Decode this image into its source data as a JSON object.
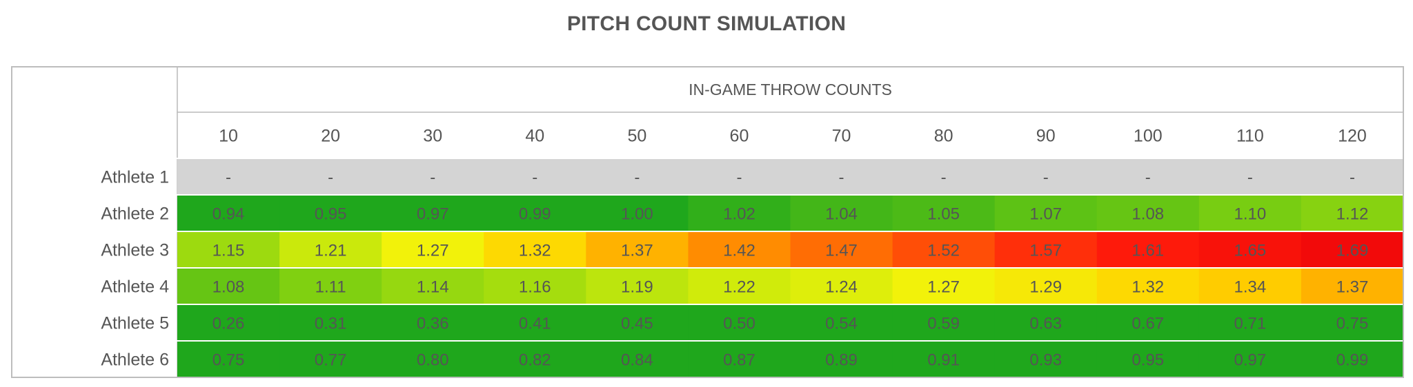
{
  "chart_data": {
    "type": "heatmap",
    "title": "PITCH COUNT SIMULATION",
    "column_group_label": "IN-GAME THROW COUNTS",
    "columns": [
      "10",
      "20",
      "30",
      "40",
      "50",
      "60",
      "70",
      "80",
      "90",
      "100",
      "110",
      "120"
    ],
    "rows": [
      {
        "label": "Athlete 1",
        "values": [
          "-",
          "-",
          "-",
          "-",
          "-",
          "-",
          "-",
          "-",
          "-",
          "-",
          "-",
          "-"
        ]
      },
      {
        "label": "Athlete 2",
        "values": [
          "0.94",
          "0.95",
          "0.97",
          "0.99",
          "1.00",
          "1.02",
          "1.04",
          "1.05",
          "1.07",
          "1.08",
          "1.10",
          "1.12"
        ]
      },
      {
        "label": "Athlete 3",
        "values": [
          "1.15",
          "1.21",
          "1.27",
          "1.32",
          "1.37",
          "1.42",
          "1.47",
          "1.52",
          "1.57",
          "1.61",
          "1.65",
          "1.69"
        ]
      },
      {
        "label": "Athlete 4",
        "values": [
          "1.08",
          "1.11",
          "1.14",
          "1.16",
          "1.19",
          "1.22",
          "1.24",
          "1.27",
          "1.29",
          "1.32",
          "1.34",
          "1.37"
        ]
      },
      {
        "label": "Athlete 5",
        "values": [
          "0.26",
          "0.31",
          "0.36",
          "0.41",
          "0.45",
          "0.50",
          "0.54",
          "0.59",
          "0.63",
          "0.67",
          "0.71",
          "0.75"
        ]
      },
      {
        "label": "Athlete 6",
        "values": [
          "0.75",
          "0.77",
          "0.80",
          "0.82",
          "0.84",
          "0.87",
          "0.89",
          "0.91",
          "0.93",
          "0.95",
          "0.97",
          "0.99"
        ]
      }
    ],
    "color_scale": {
      "stops": [
        {
          "value": 1.0,
          "color": "#1fa71c"
        },
        {
          "value": 1.1,
          "color": "#78cd12"
        },
        {
          "value": 1.2,
          "color": "#c3e80c"
        },
        {
          "value": 1.27,
          "color": "#f2f20a"
        },
        {
          "value": 1.33,
          "color": "#ffd400"
        },
        {
          "value": 1.4,
          "color": "#ff9900"
        },
        {
          "value": 1.5,
          "color": "#ff5a06"
        },
        {
          "value": 1.6,
          "color": "#ff1c0b"
        },
        {
          "value": 1.69,
          "color": "#f20a0a"
        }
      ],
      "missing_color": "#d4d4d4"
    }
  }
}
